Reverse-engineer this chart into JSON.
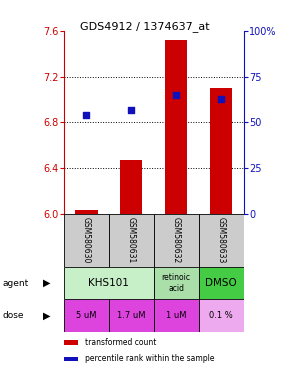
{
  "title": "GDS4912 / 1374637_at",
  "samples": [
    "GSM580630",
    "GSM580631",
    "GSM580632",
    "GSM580633"
  ],
  "bar_values": [
    6.03,
    6.47,
    7.52,
    7.1
  ],
  "bar_bottom": 6.0,
  "percentile_values": [
    54,
    57,
    65,
    63
  ],
  "ylim_left": [
    6.0,
    7.6
  ],
  "ylim_right": [
    0,
    100
  ],
  "yticks_left": [
    6.0,
    6.4,
    6.8,
    7.2,
    7.6
  ],
  "yticks_right": [
    0,
    25,
    50,
    75,
    100
  ],
  "ytick_labels_right": [
    "0",
    "25",
    "50",
    "75",
    "100%"
  ],
  "bar_color": "#cc0000",
  "dot_color": "#1111bb",
  "agent_groups": [
    {
      "cols": [
        0,
        1
      ],
      "text": "KHS101",
      "color": "#c8f0c8",
      "fontsize": 7.5
    },
    {
      "cols": [
        2
      ],
      "text": "retinoic\nacid",
      "color": "#aadfaa",
      "fontsize": 5.5
    },
    {
      "cols": [
        3
      ],
      "text": "DMSO",
      "color": "#44cc44",
      "fontsize": 7.5
    }
  ],
  "dose_labels": [
    "5 uM",
    "1.7 uM",
    "1 uM",
    "0.1 %"
  ],
  "dose_colors": [
    "#dd44dd",
    "#dd44dd",
    "#dd44dd",
    "#eeaaee"
  ],
  "sample_bg": "#cccccc",
  "grid_color": "#888888",
  "left_axis_color": "#cc0000",
  "right_axis_color": "#1111bb"
}
